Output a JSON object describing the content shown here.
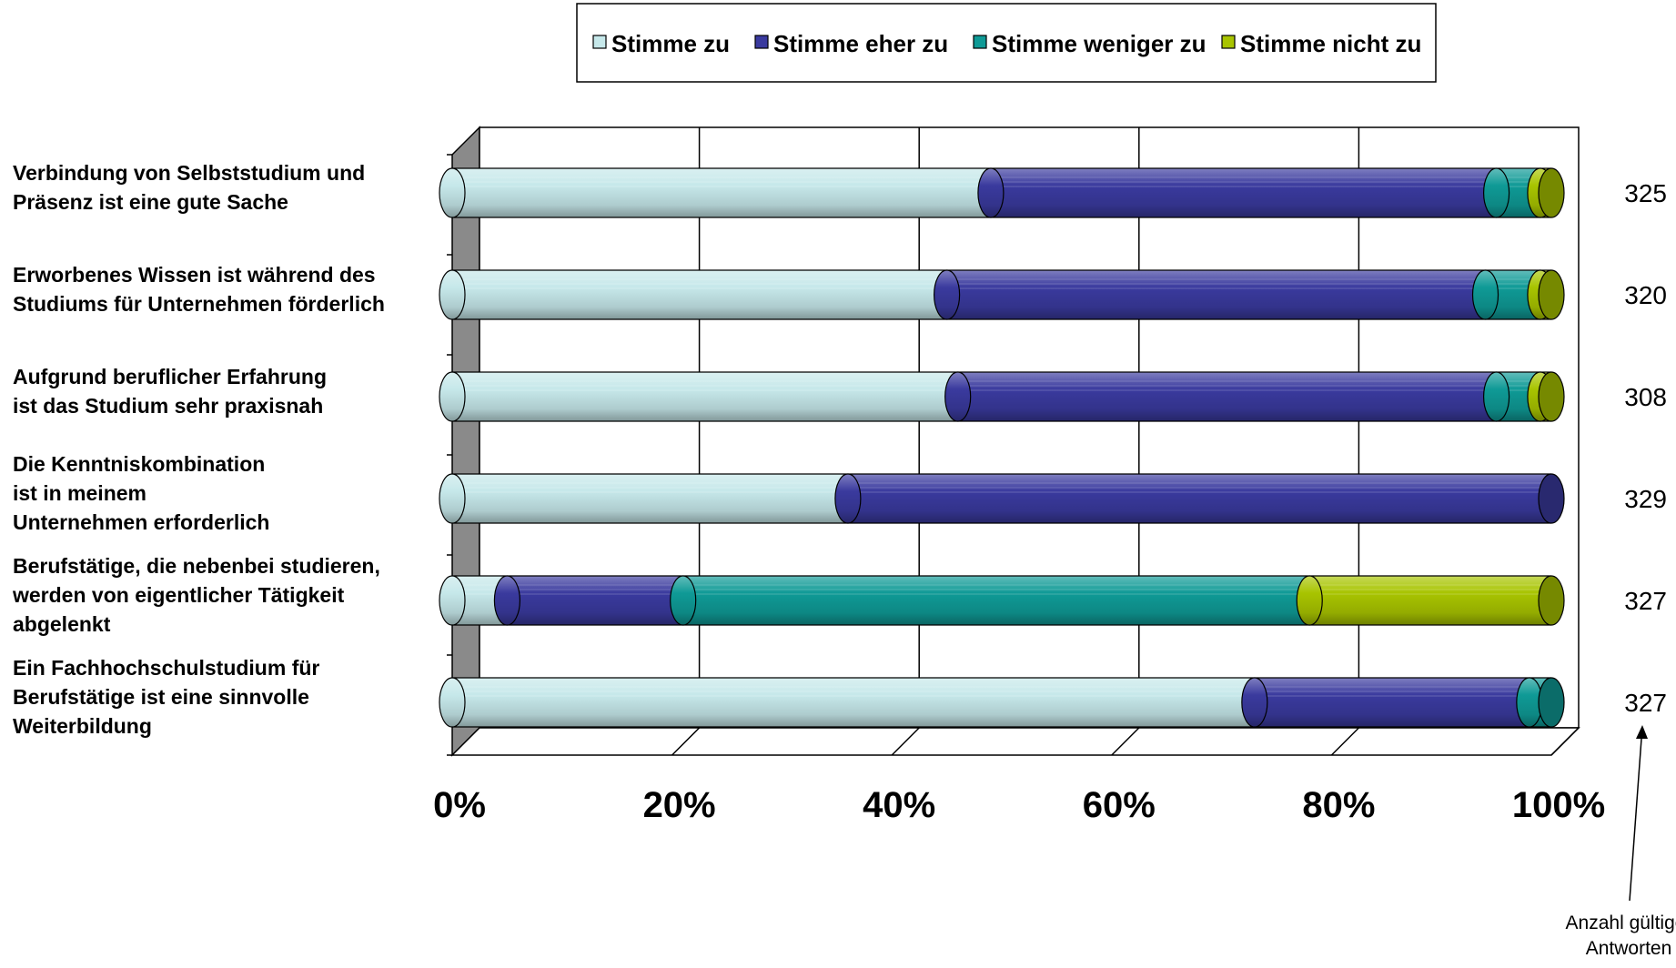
{
  "chart_data": {
    "type": "bar",
    "stacked": "percent",
    "orientation": "horizontal",
    "categories": [
      [
        "Verbindung von Selbststudium und",
        "Präsenz ist  eine gute Sache"
      ],
      [
        "Erworbenes Wissen ist während des",
        "Studiums für Unternehmen förderlich"
      ],
      [
        "Aufgrund beruflicher Erfahrung",
        "ist das Studium sehr praxisnah"
      ],
      [
        "Die Kenntniskombination",
        "ist in meinem",
        "Unternehmen erforderlich"
      ],
      [
        "Berufstätige, die nebenbei studieren,",
        "werden von eigentlicher Tätigkeit",
        "abgelenkt"
      ],
      [
        "Ein Fachhochschulstudium für",
        "Berufstätige ist eine sinnvolle",
        "Weiterbildung"
      ]
    ],
    "series": [
      {
        "name": "Stimme zu",
        "color": "#c6e8ea",
        "values": [
          49,
          45,
          46,
          36,
          5,
          73
        ]
      },
      {
        "name": "Stimme eher zu",
        "color": "#3a3a9e",
        "values": [
          46,
          49,
          49,
          64,
          16,
          25
        ]
      },
      {
        "name": "Stimme weniger zu",
        "color": "#0f9a96",
        "values": [
          4,
          5,
          4,
          0,
          57,
          2
        ]
      },
      {
        "name": "Stimme nicht zu",
        "color": "#a8c400",
        "values": [
          1,
          1,
          1,
          0,
          22,
          0
        ]
      }
    ],
    "x_ticks": [
      "0%",
      "20%",
      "40%",
      "60%",
      "80%",
      "100%"
    ],
    "xlim": [
      0,
      100
    ],
    "counts": [
      "325",
      "320",
      "308",
      "329",
      "327",
      "327"
    ],
    "counts_note": [
      "Anzahl gültiger",
      "Antworten"
    ],
    "legend_position": "top",
    "grid": true
  }
}
